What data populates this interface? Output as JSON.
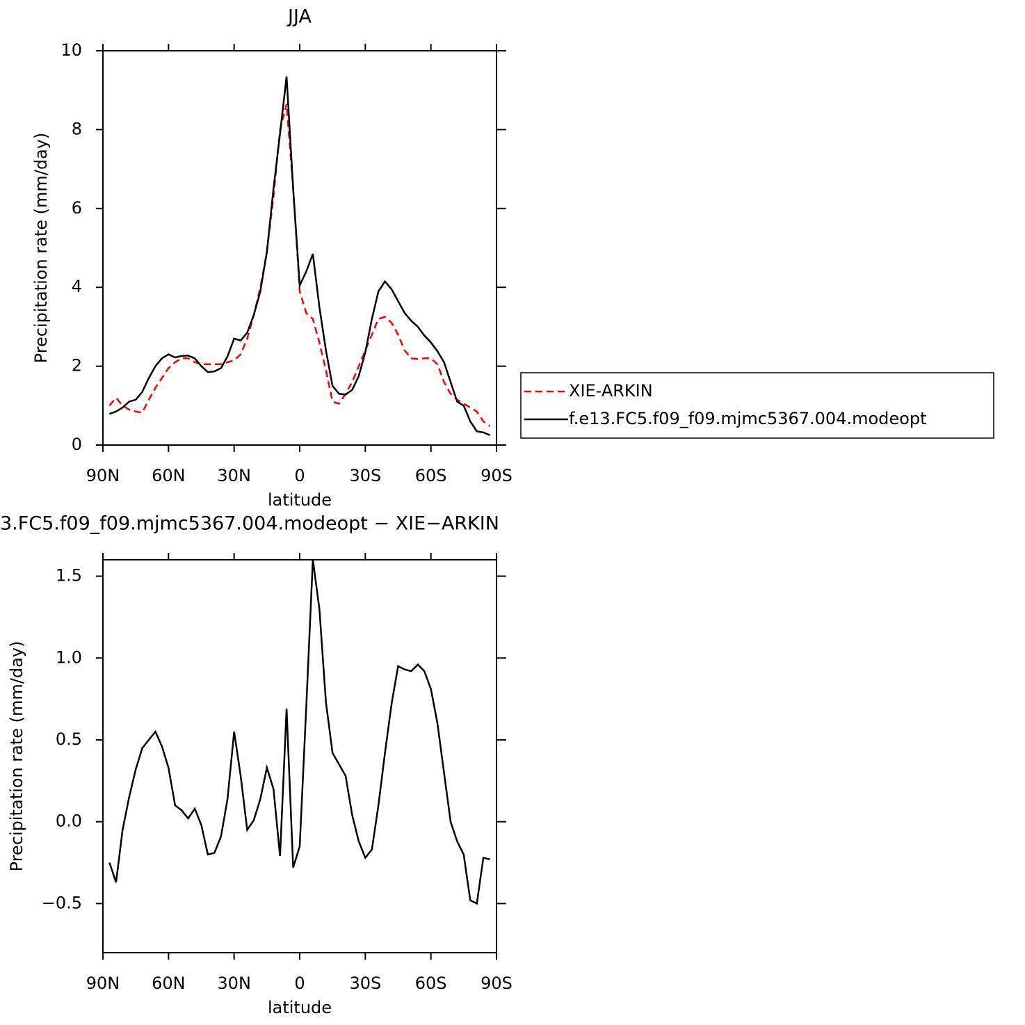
{
  "chart_data": [
    {
      "type": "line",
      "title": "JJA",
      "x_label": "latitude",
      "y_label": "Precipitation rate (mm/day)",
      "x": [
        87,
        84,
        81,
        78,
        75,
        72,
        69,
        66,
        63,
        60,
        57,
        54,
        51,
        48,
        45,
        42,
        39,
        36,
        33,
        30,
        27,
        24,
        21,
        18,
        15,
        12,
        9,
        6,
        3,
        0,
        -3,
        -6,
        -9,
        -12,
        -15,
        -18,
        -21,
        -24,
        -27,
        -30,
        -33,
        -36,
        -39,
        -42,
        -45,
        -48,
        -51,
        -54,
        -57,
        -60,
        -63,
        -66,
        -69,
        -72,
        -75,
        -78,
        -81,
        -84,
        -87
      ],
      "xlim": [
        90,
        -90
      ],
      "xticks": [
        {
          "value": 90,
          "label": "90N"
        },
        {
          "value": 60,
          "label": "60N"
        },
        {
          "value": 30,
          "label": "30N"
        },
        0,
        {
          "value": -30,
          "label": "30S"
        },
        {
          "value": -60,
          "label": "60S"
        },
        {
          "value": -90,
          "label": "90S"
        }
      ],
      "ylim": [
        0,
        10
      ],
      "yticks": [
        0,
        2,
        4,
        6,
        8,
        10
      ],
      "series": [
        {
          "name": "XIE-ARKIN",
          "color": "#ff0000",
          "dashed": true,
          "values": [
            1.0,
            1.2,
            1.0,
            0.9,
            0.85,
            0.82,
            1.15,
            1.45,
            1.7,
            1.95,
            2.1,
            2.2,
            2.2,
            2.1,
            2.05,
            2.05,
            2.05,
            2.05,
            2.1,
            2.15,
            2.3,
            2.7,
            3.3,
            4.0,
            4.9,
            6.3,
            8.0,
            8.65,
            6.5,
            3.9,
            3.35,
            3.2,
            2.6,
            1.9,
            1.1,
            1.05,
            1.3,
            1.6,
            2.0,
            2.4,
            2.8,
            3.2,
            3.25,
            3.1,
            2.8,
            2.4,
            2.2,
            2.18,
            2.2,
            2.2,
            2.05,
            1.6,
            1.3,
            1.15,
            1.05,
            0.95,
            0.85,
            0.6,
            0.48
          ]
        },
        {
          "name": "f.e13.FC5.f09_f09.mjmc5367.004.modeopt",
          "color": "#000000",
          "dashed": false,
          "values": [
            0.79,
            0.85,
            0.95,
            1.1,
            1.15,
            1.35,
            1.7,
            2.0,
            2.2,
            2.3,
            2.22,
            2.26,
            2.27,
            2.2,
            2.0,
            1.85,
            1.87,
            1.95,
            2.25,
            2.7,
            2.65,
            2.85,
            3.3,
            3.9,
            4.9,
            6.5,
            7.9,
            9.35,
            6.5,
            4.05,
            4.4,
            4.85,
            3.5,
            2.4,
            1.5,
            1.3,
            1.28,
            1.4,
            1.75,
            2.35,
            3.2,
            3.9,
            4.15,
            3.95,
            3.65,
            3.35,
            3.15,
            3.0,
            2.78,
            2.6,
            2.38,
            2.1,
            1.6,
            1.1,
            1.0,
            0.6,
            0.35,
            0.32,
            0.25
          ]
        }
      ]
    },
    {
      "type": "line",
      "title": "3.FC5.f09_f09.mjmc5367.004.modeopt − XIE−ARKIN",
      "x_label": "latitude",
      "y_label": "Precipitation rate (mm/day)",
      "x": [
        87,
        84,
        81,
        78,
        75,
        72,
        69,
        66,
        63,
        60,
        57,
        54,
        51,
        48,
        45,
        42,
        39,
        36,
        33,
        30,
        27,
        24,
        21,
        18,
        15,
        12,
        9,
        6,
        3,
        0,
        -3,
        -6,
        -9,
        -12,
        -15,
        -18,
        -21,
        -24,
        -27,
        -30,
        -33,
        -36,
        -39,
        -42,
        -45,
        -48,
        -51,
        -54,
        -57,
        -60,
        -63,
        -66,
        -69,
        -72,
        -75,
        -78,
        -81,
        -84,
        -87
      ],
      "xlim": [
        90,
        -90
      ],
      "xticks": [
        {
          "value": 90,
          "label": "90N"
        },
        {
          "value": 60,
          "label": "60N"
        },
        {
          "value": 30,
          "label": "30N"
        },
        0,
        {
          "value": -30,
          "label": "30S"
        },
        {
          "value": -60,
          "label": "60S"
        },
        {
          "value": -90,
          "label": "90S"
        }
      ],
      "ylim": [
        -0.8,
        1.6
      ],
      "yticks": [
        {
          "value": -0.5,
          "label": "−0.5"
        },
        {
          "value": 0,
          "label": "0.0"
        },
        0.5,
        {
          "value": 1,
          "label": "1.0"
        },
        1.5
      ],
      "color": "#000000",
      "values": [
        -0.25,
        -0.37,
        -0.05,
        0.15,
        0.32,
        0.45,
        0.5,
        0.55,
        0.46,
        0.33,
        0.1,
        0.07,
        0.02,
        0.08,
        -0.02,
        -0.2,
        -0.19,
        -0.09,
        0.14,
        0.55,
        0.28,
        -0.05,
        0.01,
        0.14,
        0.33,
        0.2,
        -0.21,
        0.69,
        -0.28,
        -0.15,
        0.7,
        1.6,
        1.3,
        0.73,
        0.42,
        0.35,
        0.28,
        0.04,
        -0.12,
        -0.22,
        -0.17,
        0.1,
        0.42,
        0.72,
        0.95,
        0.93,
        0.92,
        0.96,
        0.92,
        0.81,
        0.6,
        0.3,
        0.0,
        -0.12,
        -0.2,
        -0.48,
        -0.5,
        -0.22,
        -0.23
      ]
    }
  ]
}
